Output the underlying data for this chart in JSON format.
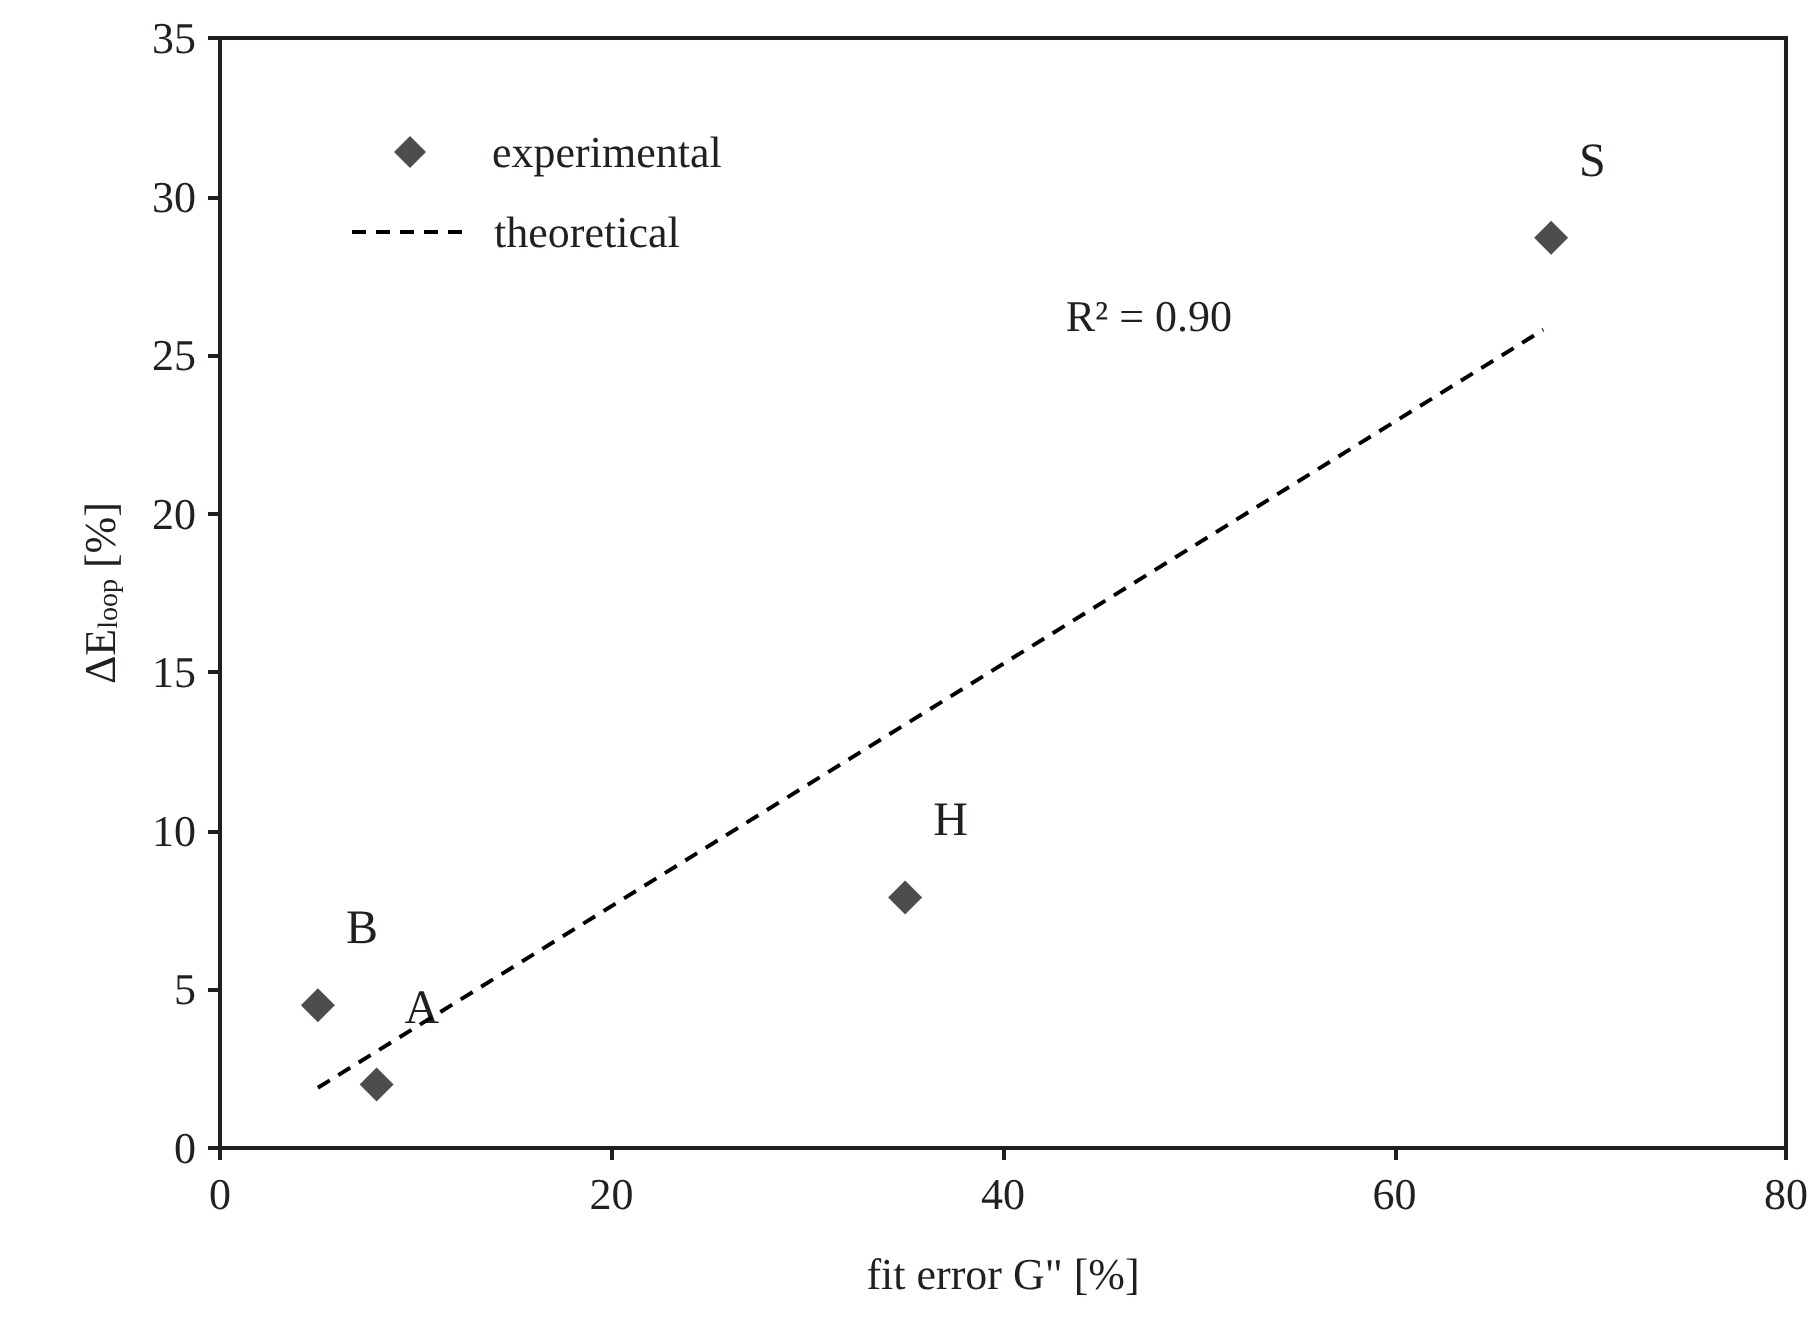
{
  "chart_data": {
    "type": "scatter",
    "xlabel": "fit error G\" [%]",
    "ylabel": "ΔE$_{loop}$ [%]",
    "xlim": [
      0,
      80
    ],
    "xticks": [
      0,
      20,
      40,
      60,
      80
    ],
    "ylim": [
      0,
      35
    ],
    "yticks": [
      0,
      5,
      10,
      15,
      20,
      25,
      30,
      35
    ],
    "grid": false,
    "legend": "top left",
    "series": [
      {
        "name": "experimental",
        "color": "#231f20",
        "marker": "diamond",
        "x": [
          5,
          8,
          35,
          68
        ],
        "values": [
          4.5,
          2.0,
          7.9,
          28.7
        ]
      },
      {
        "name": "theoretical",
        "type": "line",
        "color": "#000000",
        "marker": "none",
        "line_style": "dashed",
        "x": [
          5,
          67.6
        ],
        "values": [
          1.9,
          25.8
        ]
      }
    ],
    "annotations": [
      {
        "text": "B",
        "x": 5,
        "y": 4.5
      },
      {
        "text": "A",
        "x": 8,
        "y": 2.0
      },
      {
        "text": "H",
        "x": 35,
        "y": 7.9
      },
      {
        "text": "S",
        "x": 68,
        "y": 28.7
      },
      "R² = 0.90"
    ]
  }
}
